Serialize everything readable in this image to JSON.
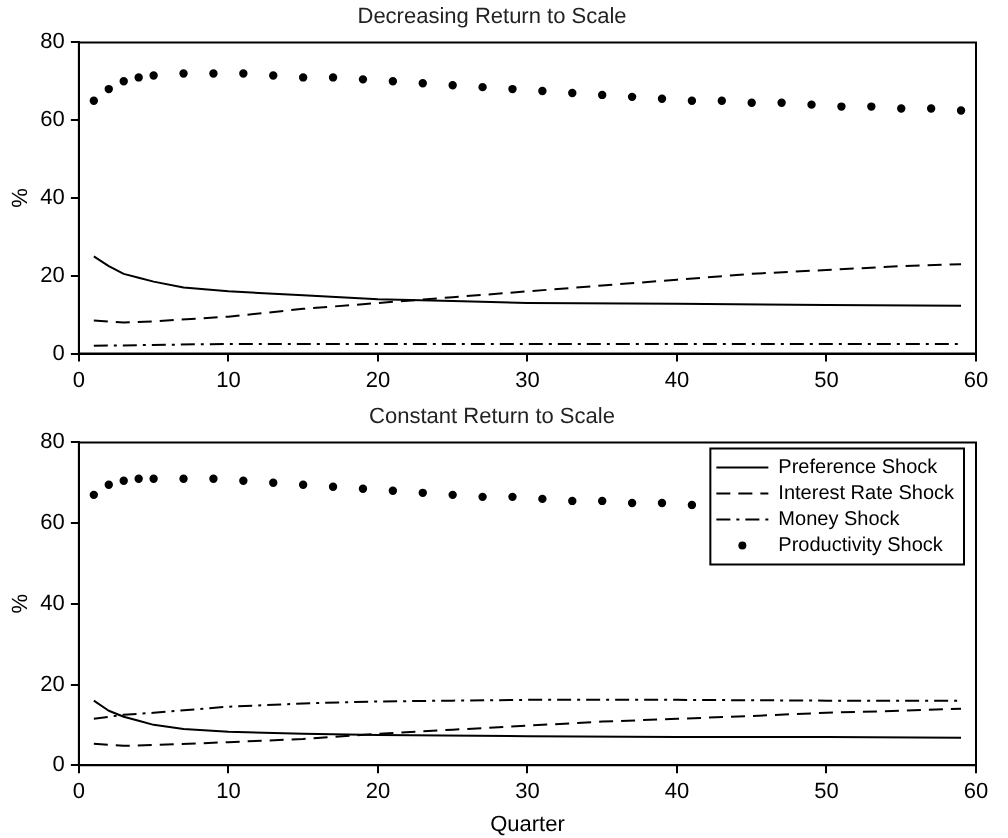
{
  "chart_data": [
    {
      "type": "line",
      "title": "Decreasing Return to Scale",
      "ylabel": "%",
      "xlim": [
        0,
        60
      ],
      "xticks": [
        0,
        10,
        20,
        30,
        40,
        50,
        60
      ],
      "ylim": [
        0,
        80
      ],
      "yticks": [
        0,
        20,
        40,
        60,
        80
      ],
      "grid": false,
      "legend": false,
      "series": [
        {
          "color": "#000000",
          "line_style": "solid",
          "x": [
            1,
            2,
            3,
            4,
            5,
            7,
            10,
            15,
            20,
            25,
            30,
            40,
            50,
            59
          ],
          "values": [
            25,
            22.5,
            20.5,
            19.5,
            18.5,
            17,
            16,
            15,
            14,
            13.5,
            13,
            12.8,
            12.5,
            12.3
          ]
        },
        {
          "color": "#000000",
          "line_style": "dashed",
          "x": [
            1,
            3,
            5,
            10,
            15,
            20,
            25,
            30,
            35,
            40,
            45,
            50,
            55,
            59
          ],
          "values": [
            8.5,
            8,
            8.3,
            9.5,
            11.5,
            13,
            14.5,
            16,
            17.5,
            19,
            20.5,
            21.5,
            22.5,
            23
          ]
        },
        {
          "color": "#000000",
          "line_style": "dashdot",
          "x": [
            1,
            10,
            20,
            30,
            40,
            50,
            59
          ],
          "values": [
            2,
            2.5,
            2.5,
            2.5,
            2.5,
            2.5,
            2.5
          ]
        },
        {
          "type": "scatter",
          "marker": "circle",
          "color": "#000000",
          "x": [
            1,
            2,
            3,
            4,
            5,
            7,
            9,
            11,
            13,
            15,
            17,
            19,
            21,
            23,
            25,
            27,
            29,
            31,
            33,
            35,
            37,
            39,
            41,
            43,
            45,
            47,
            49,
            51,
            53,
            55,
            57,
            59
          ],
          "values": [
            65,
            68,
            70,
            71,
            71.5,
            72,
            72,
            72,
            71.5,
            71,
            71,
            70.5,
            70,
            69.5,
            69,
            68.5,
            68,
            67.5,
            67,
            66.5,
            66,
            65.5,
            65,
            65,
            64.5,
            64.5,
            64,
            63.5,
            63.5,
            63,
            63,
            62.5
          ]
        }
      ]
    },
    {
      "type": "line",
      "title": "Constant Return to Scale",
      "xlabel": "Quarter",
      "ylabel": "%",
      "xlim": [
        0,
        60
      ],
      "xticks": [
        0,
        10,
        20,
        30,
        40,
        50,
        60
      ],
      "ylim": [
        0,
        80
      ],
      "yticks": [
        0,
        20,
        40,
        60,
        80
      ],
      "grid": false,
      "legend": "top right",
      "series": [
        {
          "name": "Preference Shock",
          "color": "#000000",
          "line_style": "solid",
          "x": [
            1,
            2,
            3,
            4,
            5,
            7,
            10,
            15,
            20,
            30,
            40,
            50,
            59
          ],
          "values": [
            16,
            13.5,
            12,
            11,
            10,
            9,
            8.3,
            7.8,
            7.5,
            7.2,
            7,
            7,
            6.8
          ]
        },
        {
          "name": "Interest Rate Shock",
          "color": "#000000",
          "line_style": "dashed",
          "x": [
            1,
            3,
            5,
            10,
            15,
            20,
            25,
            30,
            35,
            40,
            45,
            50,
            55,
            59
          ],
          "values": [
            5.3,
            4.8,
            5,
            5.7,
            6.5,
            7.8,
            8.8,
            9.8,
            10.8,
            11.5,
            12.2,
            13,
            13.5,
            14
          ]
        },
        {
          "name": "Money Shock",
          "color": "#000000",
          "line_style": "dashdot",
          "x": [
            1,
            3,
            5,
            10,
            15,
            20,
            25,
            30,
            40,
            50,
            59
          ],
          "values": [
            11.5,
            12.5,
            13,
            14.5,
            15.3,
            15.8,
            16,
            16.2,
            16.2,
            16,
            16
          ]
        },
        {
          "name": "Productivity Shock",
          "type": "scatter",
          "marker": "circle",
          "color": "#000000",
          "x": [
            1,
            2,
            3,
            4,
            5,
            7,
            9,
            11,
            13,
            15,
            17,
            19,
            21,
            23,
            25,
            27,
            29,
            31,
            33,
            35,
            37,
            39,
            41
          ],
          "values": [
            67,
            69.5,
            70.5,
            71,
            71,
            71,
            71,
            70.5,
            70,
            69.5,
            69,
            68.5,
            68,
            67.5,
            67,
            66.5,
            66.5,
            66,
            65.5,
            65.5,
            65,
            65,
            64.5
          ]
        }
      ]
    }
  ]
}
